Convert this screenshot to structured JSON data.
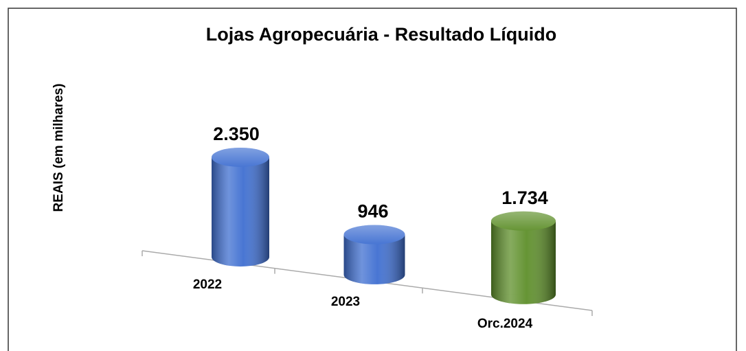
{
  "chart_data": {
    "type": "bar3d",
    "title": "Lojas Agropecuária - Resultado Líquido",
    "y_label": "REAIS (em milhares)",
    "categories": [
      "2022",
      "2023",
      "Orc.2024"
    ],
    "values": [
      2350,
      946,
      1734
    ],
    "value_labels": [
      "2.350",
      "946",
      "1.734"
    ],
    "colors": [
      "#3f6fd1",
      "#3f6fd1",
      "#5e8f2a"
    ]
  }
}
